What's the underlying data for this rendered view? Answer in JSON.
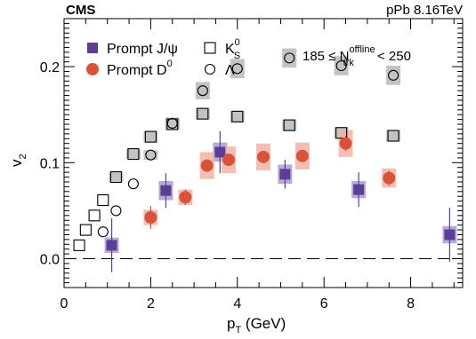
{
  "chart_data": {
    "type": "scatter",
    "experiment_label": "CMS",
    "system_label": "pPb 8.16TeV",
    "selection_label": {
      "prefix": "185 ≤ N",
      "sup": "offline",
      "sub": "trk",
      "suffix": " < 250"
    },
    "xlabel": {
      "main": "p",
      "sub": "T",
      "suffix": " (GeV)"
    },
    "ylabel": {
      "main": "v",
      "sub": "2"
    },
    "xlim": [
      0,
      9.2
    ],
    "ylim": [
      -0.03,
      0.25
    ],
    "x_ticks": [
      0,
      2,
      4,
      6,
      8
    ],
    "x_tick_labels": [
      "0",
      "2",
      "4",
      "6",
      "8"
    ],
    "y_ticks": [
      0.0,
      0.1,
      0.2
    ],
    "y_tick_labels": [
      "0.0",
      "0.1",
      "0.2"
    ],
    "grid": false,
    "legend_position": "top-left",
    "reference_line": {
      "y": 0.0,
      "style": "dashed"
    },
    "series": [
      {
        "name": "Prompt J/ψ",
        "legend_main": "Prompt J/ψ",
        "legend_sup": "",
        "legend_sub": "",
        "marker": "square",
        "filled": true,
        "color": "#5b3f96",
        "syst_color": "#a89ed2",
        "points": [
          {
            "x": 1.1,
            "y": 0.014,
            "err": 0.028,
            "syst": 0.008
          },
          {
            "x": 2.35,
            "y": 0.071,
            "err": 0.018,
            "syst": 0.01
          },
          {
            "x": 3.6,
            "y": 0.111,
            "err": 0.022,
            "syst": 0.01
          },
          {
            "x": 5.1,
            "y": 0.088,
            "err": 0.015,
            "syst": 0.01
          },
          {
            "x": 6.8,
            "y": 0.072,
            "err": 0.018,
            "syst": 0.009
          },
          {
            "x": 8.9,
            "y": 0.025,
            "err": 0.028,
            "syst": 0.009
          }
        ]
      },
      {
        "name": "Prompt D0",
        "legend_main": "Prompt D",
        "legend_sup": "0",
        "legend_sub": "",
        "marker": "circle",
        "filled": true,
        "color": "#d9533a",
        "syst_color": "#f0b4a3",
        "points": [
          {
            "x": 2.0,
            "y": 0.043,
            "err": 0.012,
            "syst": 0.008
          },
          {
            "x": 2.8,
            "y": 0.064,
            "err": 0.008,
            "syst": 0.008
          },
          {
            "x": 3.3,
            "y": 0.097,
            "err": 0.006,
            "syst": 0.014
          },
          {
            "x": 3.8,
            "y": 0.103,
            "err": 0.006,
            "syst": 0.014
          },
          {
            "x": 4.6,
            "y": 0.106,
            "err": 0.006,
            "syst": 0.014
          },
          {
            "x": 5.5,
            "y": 0.107,
            "err": 0.006,
            "syst": 0.014
          },
          {
            "x": 6.5,
            "y": 0.12,
            "err": 0.008,
            "syst": 0.014
          },
          {
            "x": 7.5,
            "y": 0.084,
            "err": 0.008,
            "syst": 0.01
          }
        ]
      },
      {
        "name": "K0S",
        "legend_main": "K",
        "legend_sup": "0",
        "legend_sub": "S",
        "marker": "square",
        "filled": false,
        "color": "#000000",
        "syst_color": "#c3c3c3",
        "points": [
          {
            "x": 0.35,
            "y": 0.014,
            "err": 0.001,
            "syst": 0.0
          },
          {
            "x": 0.5,
            "y": 0.03,
            "err": 0.001,
            "syst": 0.0
          },
          {
            "x": 0.7,
            "y": 0.045,
            "err": 0.001,
            "syst": 0.0
          },
          {
            "x": 0.9,
            "y": 0.061,
            "err": 0.001,
            "syst": 0.0
          },
          {
            "x": 1.2,
            "y": 0.085,
            "err": 0.001,
            "syst": 0.005
          },
          {
            "x": 1.6,
            "y": 0.109,
            "err": 0.001,
            "syst": 0.005
          },
          {
            "x": 2.0,
            "y": 0.127,
            "err": 0.001,
            "syst": 0.006
          },
          {
            "x": 2.5,
            "y": 0.14,
            "err": 0.001,
            "syst": 0.006
          },
          {
            "x": 3.2,
            "y": 0.151,
            "err": 0.001,
            "syst": 0.006
          },
          {
            "x": 4.0,
            "y": 0.148,
            "err": 0.001,
            "syst": 0.006
          },
          {
            "x": 5.2,
            "y": 0.139,
            "err": 0.001,
            "syst": 0.006
          },
          {
            "x": 6.4,
            "y": 0.131,
            "err": 0.001,
            "syst": 0.006
          },
          {
            "x": 7.6,
            "y": 0.128,
            "err": 0.001,
            "syst": 0.006
          }
        ]
      },
      {
        "name": "Λ",
        "legend_main": "Λ",
        "legend_sup": "",
        "legend_sub": "",
        "marker": "circle",
        "filled": false,
        "color": "#000000",
        "syst_color": "#c3c3c3",
        "points": [
          {
            "x": 0.9,
            "y": 0.028,
            "err": 0.001,
            "syst": 0.0
          },
          {
            "x": 1.2,
            "y": 0.05,
            "err": 0.001,
            "syst": 0.0
          },
          {
            "x": 1.6,
            "y": 0.078,
            "err": 0.001,
            "syst": 0.0
          },
          {
            "x": 2.0,
            "y": 0.108,
            "err": 0.001,
            "syst": 0.005
          },
          {
            "x": 2.5,
            "y": 0.141,
            "err": 0.001,
            "syst": 0.006
          },
          {
            "x": 3.2,
            "y": 0.175,
            "err": 0.001,
            "syst": 0.009
          },
          {
            "x": 4.0,
            "y": 0.198,
            "err": 0.001,
            "syst": 0.01
          },
          {
            "x": 5.2,
            "y": 0.209,
            "err": 0.001,
            "syst": 0.01
          },
          {
            "x": 6.4,
            "y": 0.201,
            "err": 0.001,
            "syst": 0.01
          },
          {
            "x": 7.6,
            "y": 0.191,
            "err": 0.001,
            "syst": 0.01
          }
        ]
      }
    ]
  }
}
